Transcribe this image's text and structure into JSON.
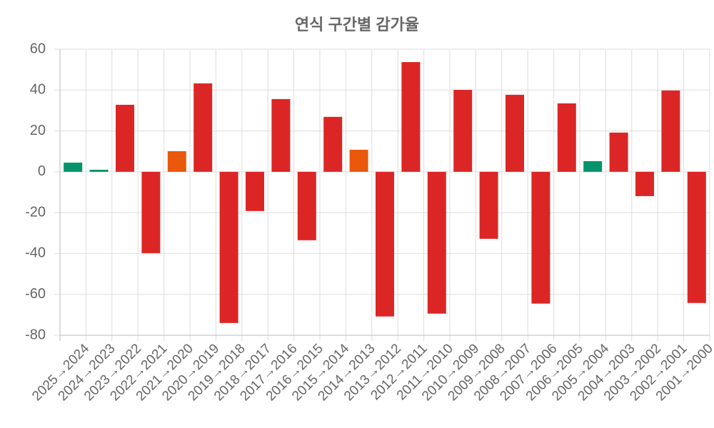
{
  "chart_data": {
    "type": "bar",
    "title": "연식 구간별 감가율",
    "categories": [
      "2025→2024",
      "2024→2023",
      "2023→2022",
      "2022→2021",
      "2021→2020",
      "2020→2019",
      "2019→2018",
      "2018→2017",
      "2017→2016",
      "2016→2015",
      "2015→2014",
      "2014→2013",
      "2013→2012",
      "2012→2011",
      "2011→2010",
      "2010→2009",
      "2009→2008",
      "2008→2007",
      "2007→2006",
      "2006→2005",
      "2005→2004",
      "2004→2003",
      "2003→2002",
      "2002→2001",
      "2001→2000"
    ],
    "values": [
      4.5,
      1,
      32.8,
      -39.8,
      10.1,
      43.3,
      -74,
      -19.2,
      35.6,
      -33.5,
      26.9,
      10.8,
      -70.8,
      53.7,
      -69.4,
      40.1,
      -32.8,
      37.7,
      -64.5,
      33.5,
      5.2,
      19.2,
      -11.9,
      39.8,
      -64.2
    ],
    "colors": [
      "#05936b",
      "#05936b",
      "#dc2626",
      "#dc2626",
      "#ea580c",
      "#dc2626",
      "#dc2626",
      "#dc2626",
      "#dc2626",
      "#dc2626",
      "#dc2626",
      "#ea580c",
      "#dc2626",
      "#dc2626",
      "#dc2626",
      "#dc2626",
      "#dc2626",
      "#dc2626",
      "#dc2626",
      "#dc2626",
      "#05936b",
      "#dc2626",
      "#dc2626",
      "#dc2626",
      "#dc2626"
    ],
    "ylim": [
      -80,
      60
    ],
    "yticks": [
      -80,
      -60,
      -40,
      -20,
      0,
      20,
      40,
      60
    ],
    "grid": true
  }
}
